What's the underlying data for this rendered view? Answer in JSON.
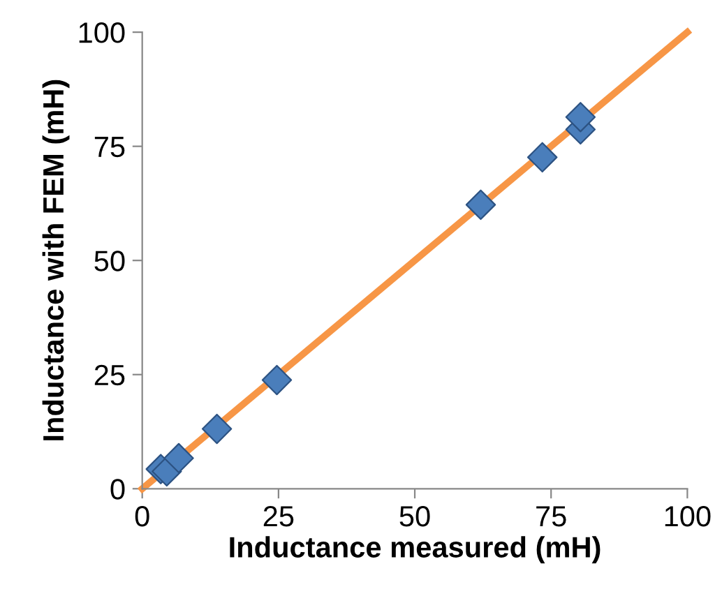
{
  "chart_data": {
    "type": "scatter",
    "xlabel": "Inductance measured (mH)",
    "ylabel": "Inductance with FEM (mH)",
    "series": [
      {
        "type": "line",
        "color": "#f79646",
        "x": [
          0,
          100
        ],
        "values": [
          0,
          100
        ],
        "marker": "none",
        "line_style": "solid"
      },
      {
        "color": "#4a7ebb",
        "x": [
          3.4,
          4.5,
          6.7,
          13.7,
          24.7,
          62.1,
          73.4,
          80.4,
          80.4
        ],
        "values": [
          4.3,
          3.8,
          6.7,
          13.1,
          23.8,
          62.2,
          72.6,
          78.7,
          81.4
        ],
        "marker": "diamond"
      }
    ],
    "xlim": [
      0,
      100
    ],
    "ylim": [
      0,
      100
    ],
    "xticks": [
      0,
      25,
      50,
      75,
      100
    ],
    "yticks": [
      0,
      25,
      50,
      75,
      100
    ],
    "grid": false,
    "legend": false
  }
}
